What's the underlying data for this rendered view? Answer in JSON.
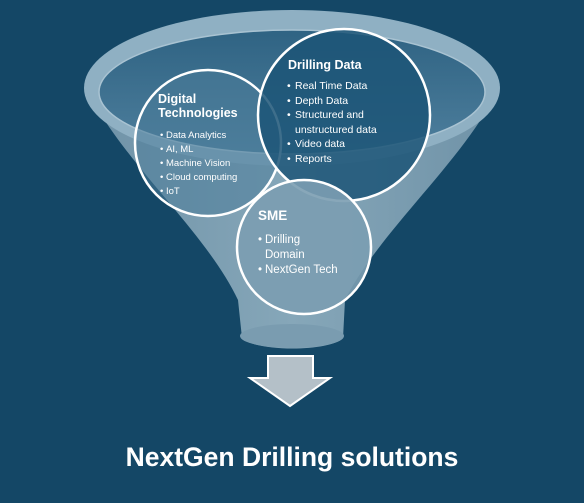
{
  "colors": {
    "background": "#144766",
    "funnel_fill": "#7d9fb3",
    "funnel_rim": "#8fb0c3",
    "funnel_mouth": "#3e7090",
    "circle_stroke": "#ffffff",
    "arrow_fill": "#b4c0c8",
    "text": "#ffffff"
  },
  "circles": {
    "digital_technologies": {
      "title_line1": "Digital",
      "title_line2": "Technologies",
      "items": [
        "Data Analytics",
        "AI, ML",
        "Machine Vision",
        "Cloud computing",
        "IoT"
      ]
    },
    "drilling_data": {
      "title": "Drilling Data",
      "items": [
        "Real Time Data",
        "Depth Data",
        "Structured and",
        "unstructured data",
        "Video data",
        "Reports"
      ]
    },
    "sme": {
      "title": "SME",
      "items": [
        "Drilling",
        "Domain",
        "NextGen Tech"
      ]
    }
  },
  "arrow_icon": "down-arrow-icon",
  "heading": "NextGen Drilling solutions"
}
